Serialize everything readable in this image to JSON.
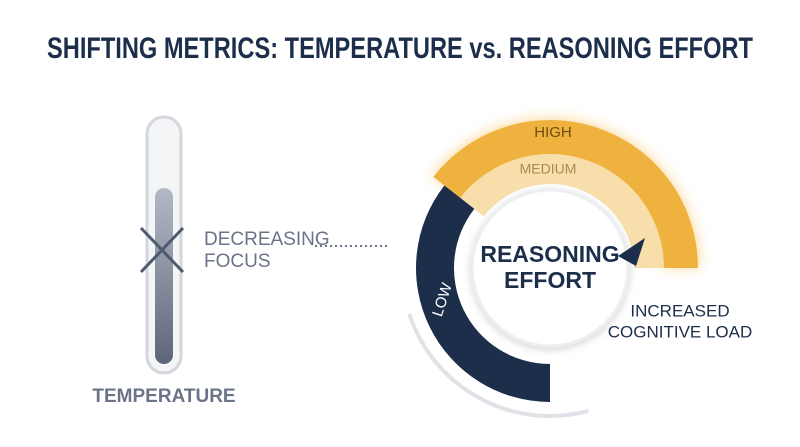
{
  "title": "SHIFTING METRICS: TEMPERATURE vs. REASONING EFFORT",
  "temperature": {
    "label": "TEMPERATURE",
    "annotation": [
      "DECREASING",
      "FOCUS"
    ]
  },
  "gauge": {
    "center_label": [
      "REASONING",
      "EFFORT"
    ],
    "levels": [
      "HIGH",
      "MEDIUM",
      "LOW"
    ],
    "annotation": [
      "INCREASED",
      "COGNITIVE LOAD"
    ]
  }
}
